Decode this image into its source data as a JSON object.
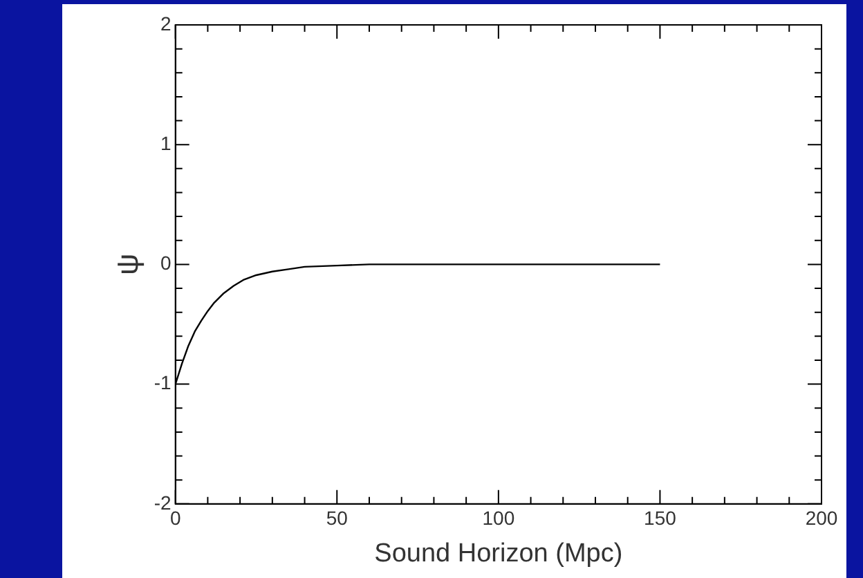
{
  "chart_data": {
    "type": "line",
    "xlabel": "Sound Horizon (Mpc)",
    "ylabel": "ψ",
    "x": [
      0,
      2,
      4,
      6,
      8,
      10,
      12,
      15,
      18,
      21,
      25,
      30,
      35,
      40,
      50,
      60,
      80,
      100,
      125,
      150
    ],
    "series": [
      {
        "color": "#000000",
        "values": [
          -1,
          -0.83,
          -0.68,
          -0.56,
          -0.47,
          -0.39,
          -0.32,
          -0.24,
          -0.18,
          -0.13,
          -0.09,
          -0.06,
          -0.04,
          -0.02,
          -0.01,
          0,
          0,
          0,
          0,
          0
        ]
      }
    ],
    "xlim": [
      0,
      200
    ],
    "ylim": [
      -2,
      2
    ],
    "xticks": [
      0,
      {
        "value": 10,
        "label": null
      },
      {
        "value": 20,
        "label": null
      },
      {
        "value": 30,
        "label": null
      },
      {
        "value": 40,
        "label": null
      },
      50,
      {
        "value": 60,
        "label": null
      },
      {
        "value": 70,
        "label": null
      },
      {
        "value": 80,
        "label": null
      },
      {
        "value": 90,
        "label": null
      },
      100,
      {
        "value": 110,
        "label": null
      },
      {
        "value": 120,
        "label": null
      },
      {
        "value": 130,
        "label": null
      },
      {
        "value": 140,
        "label": null
      },
      150,
      {
        "value": 160,
        "label": null
      },
      {
        "value": 170,
        "label": null
      },
      {
        "value": 180,
        "label": null
      },
      {
        "value": 190,
        "label": null
      },
      200
    ],
    "yticks": [
      -2,
      {
        "value": -1.8,
        "label": null
      },
      {
        "value": -1.6,
        "label": null
      },
      {
        "value": -1.4,
        "label": null
      },
      {
        "value": -1.2,
        "label": null
      },
      -1,
      {
        "value": -0.8,
        "label": null
      },
      {
        "value": -0.6,
        "label": null
      },
      {
        "value": -0.4,
        "label": null
      },
      {
        "value": -0.2,
        "label": null
      },
      0,
      {
        "value": 0.2,
        "label": null
      },
      {
        "value": 0.4,
        "label": null
      },
      {
        "value": 0.6,
        "label": null
      },
      {
        "value": 0.8,
        "label": null
      },
      1,
      {
        "value": 1.2,
        "label": null
      },
      {
        "value": 1.4,
        "label": null
      },
      {
        "value": 1.6,
        "label": null
      },
      {
        "value": 1.8,
        "label": null
      },
      2
    ],
    "grid": false,
    "legend": false,
    "marker": "none",
    "line_style": "solid"
  }
}
